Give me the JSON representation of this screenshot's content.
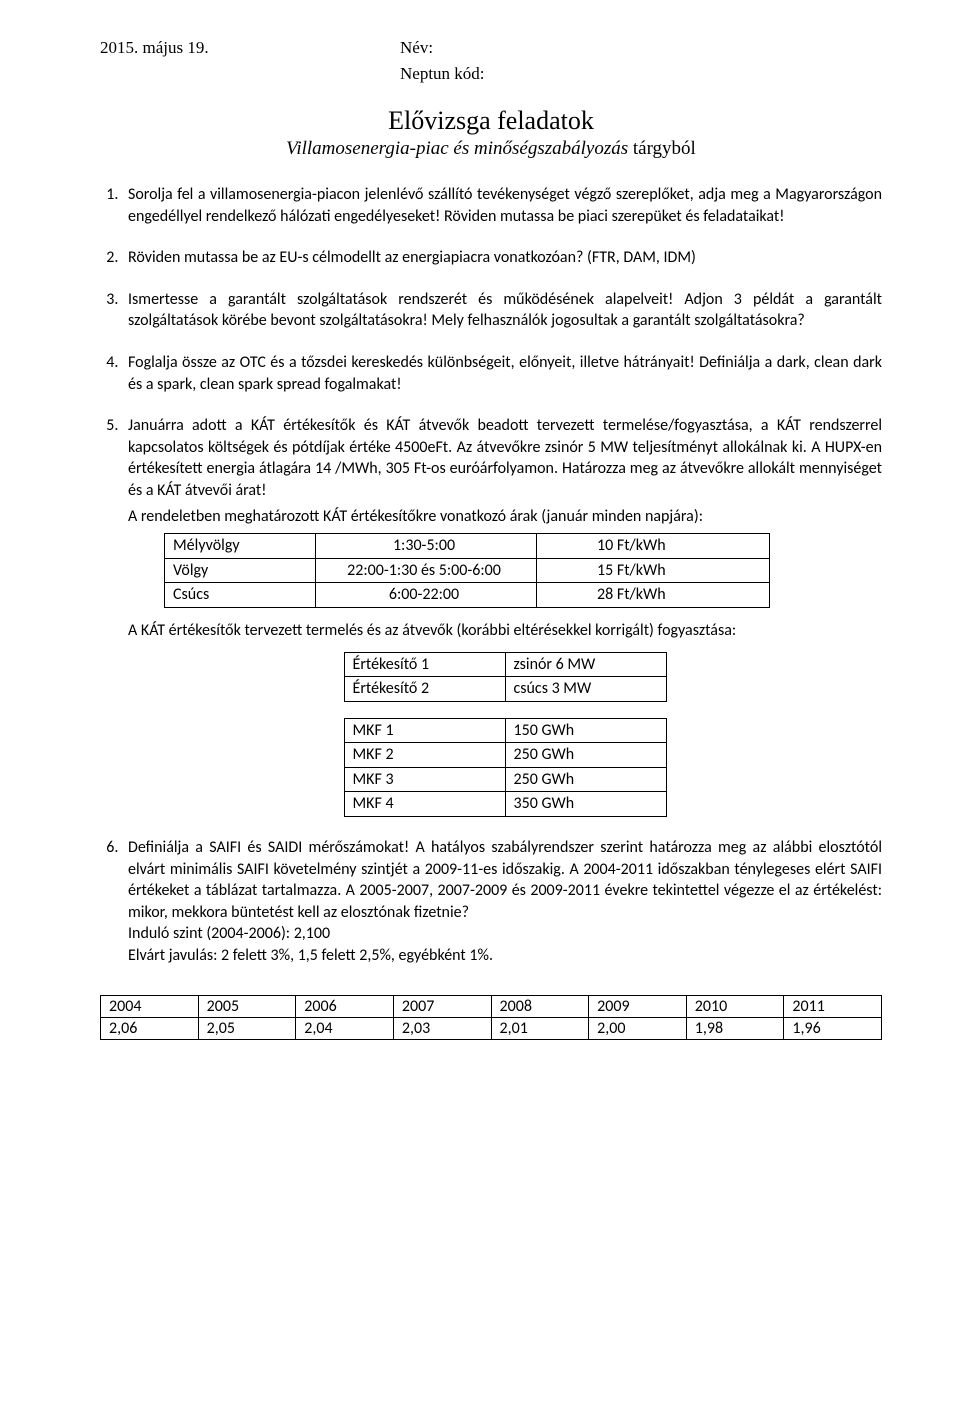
{
  "header": {
    "date": "2015. május 19.",
    "name_label": "Név:",
    "neptun_label": "Neptun kód:"
  },
  "title": "Elővizsga feladatok",
  "subtitle_italic": "Villamosenergia-piac és minőségszabályozás",
  "subtitle_rest": " tárgyból",
  "q1": "Sorolja fel a villamosenergia-piacon jelenlévő szállító tevékenységet végző szereplőket, adja meg a Magyarországon engedéllyel rendelkező hálózati engedélyeseket! Röviden mutassa be piaci szerepüket és feladataikat!",
  "q2": "Röviden mutassa be az EU-s célmodellt az energiapiacra vonatkozóan? (FTR, DAM, IDM)",
  "q3": "Ismertesse a garantált szolgáltatások rendszerét és működésének alapelveit! Adjon 3 példát a garantált szolgáltatások körébe bevont szolgáltatásokra! Mely felhasználók jogosultak a garantált szolgáltatásokra?",
  "q4": "Foglalja össze az OTC és a tőzsdei kereskedés különbségeit, előnyeit, illetve hátrányait! Definiálja a dark, clean dark és a spark, clean spark spread fogalmakat!",
  "q5_intro": "Januárra adott a KÁT értékesítők és KÁT átvevők beadott tervezett termelése/fogyasztása, a KÁT rendszerrel kapcsolatos költségek és pótdíjak értéke 4500eFt. Az átvevőkre zsinór 5 MW teljesítményt allokálnak ki. A HUPX-en értékesített energia átlagára 14 /MWh, 305 Ft-os euróárfolyamon. Határozza meg az átvevőkre allokált mennyiséget és a KÁT átvevői árat!",
  "q5_sub1": "A rendeletben meghatározott KÁT értékesítőkre vonatkozó árak (január minden napjára):",
  "table1": {
    "rows": [
      [
        "Mélyvölgy",
        "1:30-5:00",
        "10 Ft/kWh"
      ],
      [
        "Völgy",
        "22:00-1:30 és 5:00-6:00",
        "15 Ft/kWh"
      ],
      [
        "Csúcs",
        "6:00-22:00",
        "28 Ft/kWh"
      ]
    ]
  },
  "q5_sub2": "A KÁT értékesítők tervezett termelés és az átvevők (korábbi eltérésekkel korrigált) fogyasztása:",
  "table2": {
    "rows": [
      [
        "Értékesítő 1",
        "zsinór 6 MW"
      ],
      [
        "Értékesítő 2",
        "csúcs 3 MW"
      ]
    ]
  },
  "table3": {
    "rows": [
      [
        "MKF 1",
        "150 GWh"
      ],
      [
        "MKF 2",
        "250 GWh"
      ],
      [
        "MKF 3",
        "250 GWh"
      ],
      [
        "MKF 4",
        "350 GWh"
      ]
    ]
  },
  "q6": "Definiálja a SAIFI és SAIDI mérőszámokat! A hatályos szabályrendszer szerint határozza meg az alábbi elosztótól elvárt minimális SAIFI követelmény szintjét a 2009-11-es időszakig. A 2004-2011 időszakban ténylegeses elért SAIFI értékeket a táblázat tartalmazza. A 2005-2007, 2007-2009 és 2009-2011 évekre tekintettel végezze el az értékelést: mikor, mekkora büntetést kell az elosztónak fizetnie?",
  "q6_line2": "Induló szint (2004-2006): 2,100",
  "q6_line3": "Elvárt javulás: 2 felett 3%, 1,5 felett 2,5%, egyébként 1%.",
  "bottom_table": {
    "header": [
      "2004",
      "2005",
      "2006",
      "2007",
      "2008",
      "2009",
      "2010",
      "2011"
    ],
    "row": [
      "2,06",
      "2,05",
      "2,04",
      "2,03",
      "2,01",
      "2,00",
      "1,98",
      "1,96"
    ]
  }
}
